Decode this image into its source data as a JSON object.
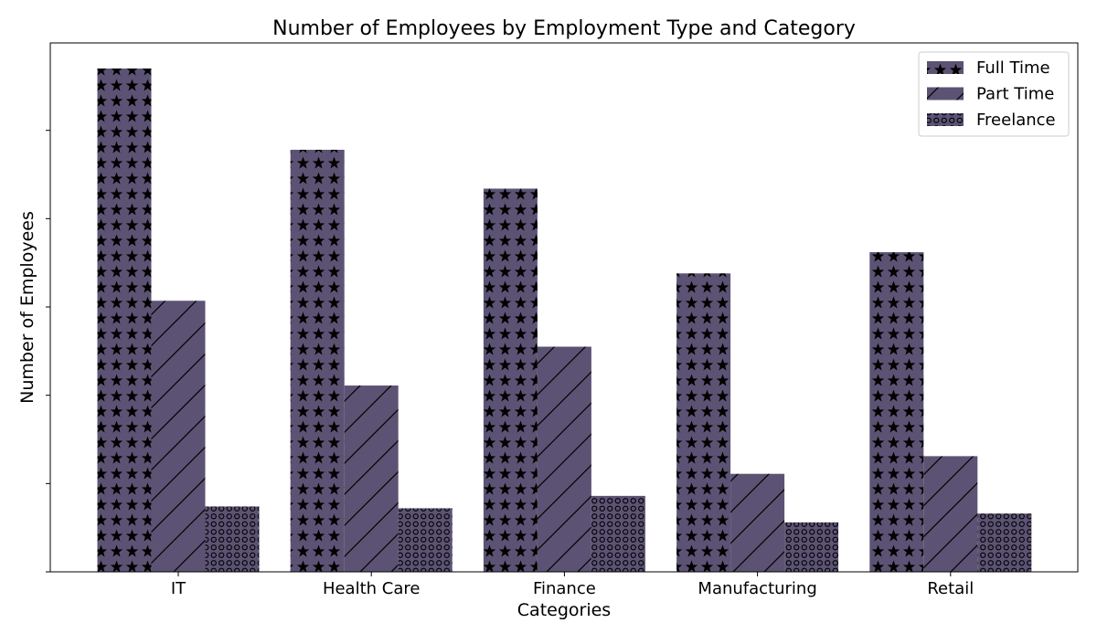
{
  "chart_data": {
    "type": "bar",
    "title": "Number of Employees by Employment Type and Category",
    "xlabel": "Categories",
    "ylabel": "Number of Employees",
    "categories": [
      "IT",
      "Health Care",
      "Finance",
      "Manufacturing",
      "Retail"
    ],
    "series": [
      {
        "name": "Full Time",
        "values": [
          5700,
          4780,
          4340,
          3380,
          3620
        ],
        "pattern": "stars"
      },
      {
        "name": "Part Time",
        "values": [
          3070,
          2110,
          2550,
          1110,
          1310
        ],
        "pattern": "diagonal"
      },
      {
        "name": "Freelance",
        "values": [
          740,
          720,
          860,
          560,
          660
        ],
        "pattern": "circles"
      }
    ],
    "ylim": [
      0,
      5990
    ],
    "y_tick_values": [
      0,
      1000,
      2000,
      3000,
      4000,
      5000
    ],
    "y_tick_labels_shown": false,
    "grid": false,
    "legend_position": "top-right",
    "colors": {
      "bar_fill": "#5c5374",
      "edge": "#000000"
    }
  }
}
